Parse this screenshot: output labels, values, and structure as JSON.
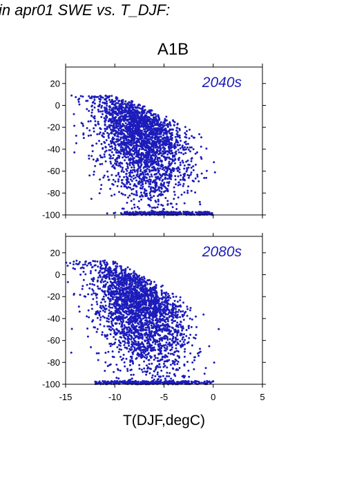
{
  "header_text": "in apr01 SWE vs. T_DJF:",
  "scenario_title": "A1B",
  "point_color": "#1c1cbb",
  "chart_data": [
    {
      "type": "scatter",
      "panel_label": "2040s",
      "xlim": [
        -15,
        5
      ],
      "ylim": [
        -100,
        35
      ],
      "x_ticks": [
        -15,
        -10,
        -5,
        0,
        5
      ],
      "y_ticks": [
        20,
        0,
        -20,
        -40,
        -60,
        -80,
        -100
      ],
      "y_tick_labels": [
        "20",
        "0",
        "-20",
        "-40",
        "-60",
        "-80",
        "-100"
      ],
      "cloud": {
        "points": 2600,
        "center_x": -7.3,
        "spread_x": 2.3,
        "x_range": [
          -15,
          3
        ],
        "top_value": 9,
        "floor_value": -100,
        "floor_x_range": [
          -9,
          0
        ],
        "trend_per_degC": -7
      }
    },
    {
      "type": "scatter",
      "panel_label": "2080s",
      "xlim": [
        -15,
        5
      ],
      "ylim": [
        -100,
        35
      ],
      "x_ticks": [
        -15,
        -10,
        -5,
        0,
        5
      ],
      "x_tick_labels": [
        "-15",
        "-10",
        "-5",
        "0",
        "5"
      ],
      "y_ticks": [
        20,
        0,
        -20,
        -40,
        -60,
        -80,
        -100
      ],
      "y_tick_labels": [
        "20",
        "0",
        "-20",
        "-40",
        "-60",
        "-80",
        "-100"
      ],
      "xlabel": "T(DJF,degC)",
      "cloud": {
        "points": 2600,
        "center_x": -7.5,
        "spread_x": 2.4,
        "x_range": [
          -15,
          2.5
        ],
        "top_value": 13,
        "floor_value": -100,
        "floor_x_range": [
          -12,
          0
        ],
        "trend_per_degC": -8
      }
    }
  ]
}
